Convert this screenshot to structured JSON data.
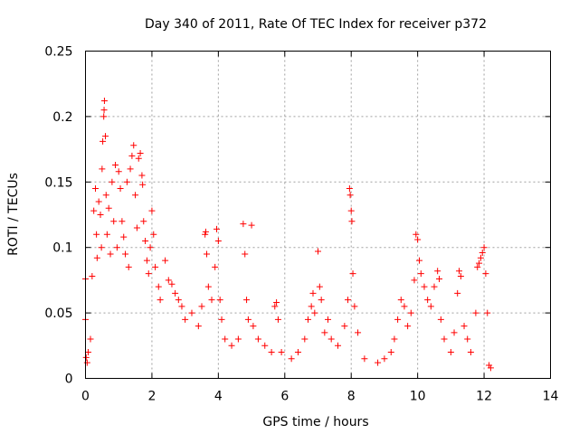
{
  "chart_data": {
    "type": "scatter",
    "title": "Day 340 of 2011, Rate Of TEC Index for receiver p372",
    "xlabel": "GPS time / hours",
    "ylabel": "ROTI / TECUs",
    "xlim": [
      0,
      14
    ],
    "ylim": [
      0,
      0.25
    ],
    "x_ticks": [
      0,
      2,
      4,
      6,
      8,
      10,
      12,
      14
    ],
    "y_ticks": [
      0,
      0.05,
      0.1,
      0.15,
      0.2,
      0.25
    ],
    "x_tick_labels": [
      "0",
      "2",
      "4",
      "6",
      "8",
      "10",
      "12",
      "14"
    ],
    "y_tick_labels": [
      "0",
      "0.05",
      "0.1",
      "0.15",
      "0.2",
      "0.25"
    ],
    "grid": true,
    "marker": "plus",
    "color": "#ff0000",
    "series": [
      {
        "name": "ROTI",
        "points": [
          [
            0.0,
            0.076
          ],
          [
            0.0,
            0.045
          ],
          [
            0.02,
            0.016
          ],
          [
            0.05,
            0.012
          ],
          [
            0.08,
            0.02
          ],
          [
            0.15,
            0.03
          ],
          [
            0.2,
            0.078
          ],
          [
            0.25,
            0.128
          ],
          [
            0.3,
            0.145
          ],
          [
            0.33,
            0.11
          ],
          [
            0.35,
            0.092
          ],
          [
            0.4,
            0.135
          ],
          [
            0.45,
            0.125
          ],
          [
            0.48,
            0.1
          ],
          [
            0.5,
            0.16
          ],
          [
            0.52,
            0.181
          ],
          [
            0.55,
            0.2
          ],
          [
            0.56,
            0.205
          ],
          [
            0.57,
            0.212
          ],
          [
            0.6,
            0.185
          ],
          [
            0.62,
            0.14
          ],
          [
            0.65,
            0.11
          ],
          [
            0.7,
            0.13
          ],
          [
            0.75,
            0.095
          ],
          [
            0.8,
            0.15
          ],
          [
            0.85,
            0.12
          ],
          [
            0.9,
            0.163
          ],
          [
            0.95,
            0.1
          ],
          [
            1.0,
            0.158
          ],
          [
            1.05,
            0.145
          ],
          [
            1.1,
            0.12
          ],
          [
            1.15,
            0.108
          ],
          [
            1.2,
            0.095
          ],
          [
            1.25,
            0.15
          ],
          [
            1.3,
            0.085
          ],
          [
            1.35,
            0.16
          ],
          [
            1.4,
            0.17
          ],
          [
            1.45,
            0.178
          ],
          [
            1.5,
            0.14
          ],
          [
            1.55,
            0.115
          ],
          [
            1.6,
            0.168
          ],
          [
            1.65,
            0.172
          ],
          [
            1.7,
            0.155
          ],
          [
            1.72,
            0.148
          ],
          [
            1.75,
            0.12
          ],
          [
            1.8,
            0.105
          ],
          [
            1.85,
            0.09
          ],
          [
            1.9,
            0.08
          ],
          [
            1.95,
            0.1
          ],
          [
            2.0,
            0.128
          ],
          [
            2.05,
            0.11
          ],
          [
            2.1,
            0.085
          ],
          [
            2.2,
            0.07
          ],
          [
            2.25,
            0.06
          ],
          [
            2.4,
            0.09
          ],
          [
            2.5,
            0.075
          ],
          [
            2.6,
            0.072
          ],
          [
            2.7,
            0.065
          ],
          [
            2.8,
            0.06
          ],
          [
            2.9,
            0.055
          ],
          [
            3.0,
            0.045
          ],
          [
            3.2,
            0.05
          ],
          [
            3.4,
            0.04
          ],
          [
            3.5,
            0.055
          ],
          [
            3.6,
            0.11
          ],
          [
            3.62,
            0.112
          ],
          [
            3.65,
            0.095
          ],
          [
            3.7,
            0.07
          ],
          [
            3.8,
            0.06
          ],
          [
            3.9,
            0.085
          ],
          [
            3.95,
            0.114
          ],
          [
            4.0,
            0.105
          ],
          [
            4.05,
            0.06
          ],
          [
            4.1,
            0.045
          ],
          [
            4.2,
            0.03
          ],
          [
            4.4,
            0.025
          ],
          [
            4.6,
            0.03
          ],
          [
            4.75,
            0.118
          ],
          [
            4.8,
            0.095
          ],
          [
            4.85,
            0.06
          ],
          [
            4.9,
            0.045
          ],
          [
            5.0,
            0.117
          ],
          [
            5.05,
            0.04
          ],
          [
            5.2,
            0.03
          ],
          [
            5.4,
            0.025
          ],
          [
            5.6,
            0.02
          ],
          [
            5.7,
            0.055
          ],
          [
            5.75,
            0.058
          ],
          [
            5.8,
            0.045
          ],
          [
            5.9,
            0.02
          ],
          [
            6.2,
            0.015
          ],
          [
            6.4,
            0.02
          ],
          [
            6.6,
            0.03
          ],
          [
            6.7,
            0.045
          ],
          [
            6.8,
            0.055
          ],
          [
            6.85,
            0.065
          ],
          [
            6.9,
            0.05
          ],
          [
            7.0,
            0.097
          ],
          [
            7.05,
            0.07
          ],
          [
            7.1,
            0.06
          ],
          [
            7.2,
            0.035
          ],
          [
            7.3,
            0.045
          ],
          [
            7.4,
            0.03
          ],
          [
            7.6,
            0.025
          ],
          [
            7.8,
            0.04
          ],
          [
            7.9,
            0.06
          ],
          [
            7.95,
            0.145
          ],
          [
            7.97,
            0.14
          ],
          [
            8.0,
            0.128
          ],
          [
            8.02,
            0.12
          ],
          [
            8.05,
            0.08
          ],
          [
            8.1,
            0.055
          ],
          [
            8.2,
            0.035
          ],
          [
            8.4,
            0.015
          ],
          [
            8.8,
            0.012
          ],
          [
            9.0,
            0.015
          ],
          [
            9.2,
            0.02
          ],
          [
            9.3,
            0.03
          ],
          [
            9.4,
            0.045
          ],
          [
            9.5,
            0.06
          ],
          [
            9.6,
            0.055
          ],
          [
            9.7,
            0.04
          ],
          [
            9.8,
            0.05
          ],
          [
            9.9,
            0.075
          ],
          [
            9.95,
            0.11
          ],
          [
            10.0,
            0.106
          ],
          [
            10.05,
            0.09
          ],
          [
            10.1,
            0.08
          ],
          [
            10.2,
            0.07
          ],
          [
            10.3,
            0.06
          ],
          [
            10.4,
            0.055
          ],
          [
            10.5,
            0.07
          ],
          [
            10.6,
            0.082
          ],
          [
            10.65,
            0.076
          ],
          [
            10.7,
            0.045
          ],
          [
            10.8,
            0.03
          ],
          [
            11.0,
            0.02
          ],
          [
            11.1,
            0.035
          ],
          [
            11.2,
            0.065
          ],
          [
            11.25,
            0.082
          ],
          [
            11.3,
            0.078
          ],
          [
            11.4,
            0.04
          ],
          [
            11.5,
            0.03
          ],
          [
            11.6,
            0.02
          ],
          [
            11.75,
            0.05
          ],
          [
            11.8,
            0.085
          ],
          [
            11.85,
            0.088
          ],
          [
            11.9,
            0.092
          ],
          [
            11.95,
            0.096
          ],
          [
            12.0,
            0.1
          ],
          [
            12.05,
            0.08
          ],
          [
            12.1,
            0.05
          ],
          [
            12.15,
            0.01
          ],
          [
            12.2,
            0.008
          ]
        ]
      }
    ]
  }
}
